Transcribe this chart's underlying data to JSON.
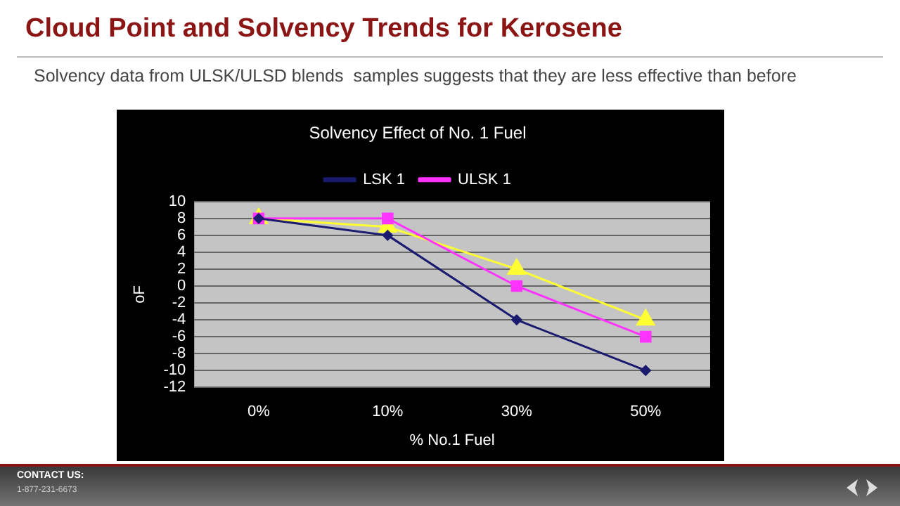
{
  "chart_data": {
    "type": "line",
    "title": "Solvency Effect of No. 1 Fuel",
    "xlabel": "% No.1 Fuel",
    "ylabel": "oF",
    "annotations": [
      "Cloud Point and Solvency Trends for Kerosene",
      "Solvency data from ULSK/ULSD blends  samples suggests that they are less effective than before",
      "CONTACT US:",
      "1-877-231-6673"
    ],
    "categories": [
      "0%",
      "10%",
      "30%",
      "50%"
    ],
    "series": [
      {
        "name": "LSK 1",
        "color": "#1a1a6e",
        "values": [
          8,
          6,
          -4,
          -10
        ],
        "marker": "diamond"
      },
      {
        "name": "ULSK 1",
        "color": "#ff33ff",
        "values": [
          8,
          8,
          0,
          -6
        ],
        "marker": "square"
      },
      {
        "color": "#ffff33",
        "values": [
          8,
          7,
          2,
          -4
        ],
        "marker": "triangle"
      }
    ],
    "ylim": [
      -12,
      10
    ],
    "yticks": [
      -12,
      -10,
      -8,
      -6,
      -4,
      -2,
      0,
      2,
      4,
      6,
      8,
      10
    ],
    "grid": "y",
    "legend": "top"
  }
}
